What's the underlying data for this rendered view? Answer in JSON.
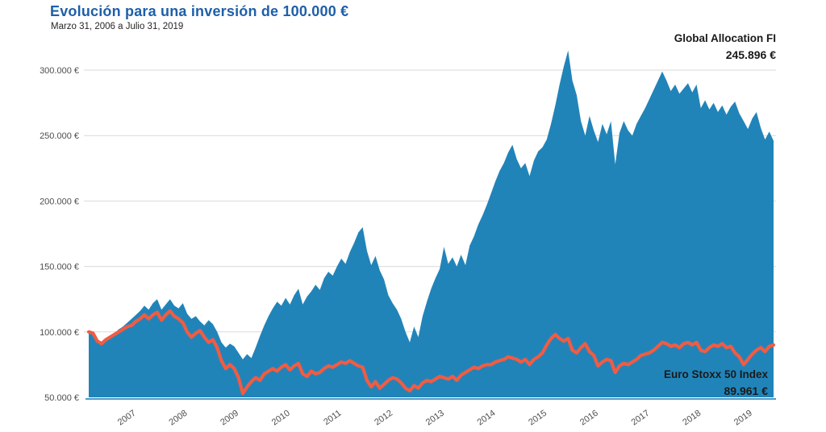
{
  "header": {
    "title": "Evolución para una inversión de 100.000 €",
    "subtitle": "Marzo 31, 2006 a Julio 31, 2019"
  },
  "colors": {
    "title": "#1e5fa9",
    "subtitle": "#262626",
    "area_fill": "#2184b9",
    "line_stroke": "#f05c43",
    "grid": "#d9d9d9",
    "axis_line": "#4a9bc9",
    "tick_text": "#4d4d4d",
    "callout_text": "#1a1a1a"
  },
  "callouts": {
    "series1_name": "Global Allocation FI",
    "series1_value": "245.896 €",
    "series2_name": "Euro Stoxx 50 Index",
    "series2_value": "89.961 €"
  },
  "chart_data": {
    "type": "area",
    "title": "Evolución para una inversión de 100.000 €",
    "subtitle": "Marzo 31, 2006 a Julio 31, 2019",
    "x_unit": "months (monthly samples, Mar 2006 to Jul 2019)",
    "y_unit": "EUR (values stored in thousands of €)",
    "x_start_label": "Marzo 2006",
    "x_end_label": "Julio 2019",
    "x_tick_years": [
      2007,
      2008,
      2009,
      2010,
      2011,
      2012,
      2013,
      2014,
      2015,
      2016,
      2017,
      2018,
      2019
    ],
    "y_ticks_values_thousands": [
      50,
      100,
      150,
      200,
      250,
      300
    ],
    "y_tick_labels": [
      "50.000 €",
      "100.000 €",
      "150.000 €",
      "200.000 €",
      "250.000 €",
      "300.000 €"
    ],
    "ylim_thousands": [
      50,
      322
    ],
    "grid": "horizontal-only",
    "legend_position": "inline-callouts",
    "series": [
      {
        "name": "Global Allocation FI",
        "render": "area",
        "final_value_eur": 245896,
        "values_thousands": [
          100,
          99,
          94,
          92,
          95,
          97,
          99,
          102,
          104,
          107,
          110,
          113,
          116,
          120,
          117,
          122,
          125,
          117,
          121,
          125,
          120,
          118,
          122,
          114,
          110,
          112,
          108,
          105,
          109,
          106,
          100,
          92,
          88,
          91,
          89,
          84,
          79,
          83,
          80,
          88,
          97,
          105,
          112,
          118,
          123,
          120,
          126,
          121,
          128,
          133,
          121,
          127,
          131,
          136,
          132,
          141,
          146,
          143,
          150,
          156,
          152,
          161,
          168,
          176,
          180,
          162,
          151,
          158,
          147,
          140,
          128,
          122,
          117,
          110,
          100,
          92,
          104,
          96,
          112,
          123,
          133,
          141,
          148,
          165,
          152,
          157,
          150,
          159,
          151,
          166,
          173,
          182,
          189,
          197,
          206,
          215,
          223,
          229,
          237,
          243,
          232,
          225,
          229,
          219,
          231,
          238,
          241,
          247,
          259,
          273,
          289,
          303,
          315,
          292,
          281,
          261,
          250,
          265,
          254,
          245,
          259,
          251,
          261,
          228,
          252,
          261,
          254,
          250,
          259,
          265,
          271,
          278,
          285,
          292,
          299,
          292,
          284,
          289,
          282,
          286,
          290,
          283,
          289,
          271,
          277,
          270,
          275,
          268,
          273,
          266,
          272,
          276,
          267,
          261,
          255,
          263,
          268,
          256,
          247,
          253,
          246
        ]
      },
      {
        "name": "Euro Stoxx 50 Index",
        "render": "line",
        "final_value_eur": 89961,
        "values_thousands": [
          100,
          99,
          93,
          91,
          94,
          96,
          98,
          100,
          102,
          104,
          105,
          108,
          110,
          113,
          110,
          113,
          115,
          109,
          113,
          116,
          112,
          110,
          107,
          100,
          96,
          99,
          101,
          96,
          92,
          94,
          88,
          78,
          72,
          75,
          72,
          65,
          53,
          58,
          62,
          65,
          63,
          68,
          70,
          72,
          70,
          73,
          75,
          71,
          74,
          76,
          68,
          66,
          70,
          68,
          69,
          72,
          74,
          73,
          75,
          77,
          76,
          78,
          76,
          74,
          73,
          63,
          58,
          62,
          57,
          60,
          63,
          65,
          64,
          61,
          57,
          55,
          59,
          57,
          61,
          63,
          62,
          64,
          66,
          65,
          64,
          66,
          63,
          67,
          69,
          71,
          73,
          72,
          74,
          75,
          75,
          77,
          78,
          79,
          81,
          80,
          79,
          77,
          79,
          75,
          79,
          81,
          84,
          90,
          95,
          98,
          95,
          93,
          95,
          86,
          84,
          88,
          91,
          85,
          82,
          74,
          77,
          79,
          78,
          69,
          74,
          76,
          75,
          77,
          79,
          82,
          83,
          84,
          86,
          89,
          92,
          91,
          89,
          90,
          88,
          91,
          92,
          90,
          92,
          86,
          85,
          88,
          90,
          89,
          91,
          88,
          89,
          84,
          81,
          75,
          79,
          83,
          86,
          88,
          85,
          89,
          90
        ]
      }
    ]
  }
}
